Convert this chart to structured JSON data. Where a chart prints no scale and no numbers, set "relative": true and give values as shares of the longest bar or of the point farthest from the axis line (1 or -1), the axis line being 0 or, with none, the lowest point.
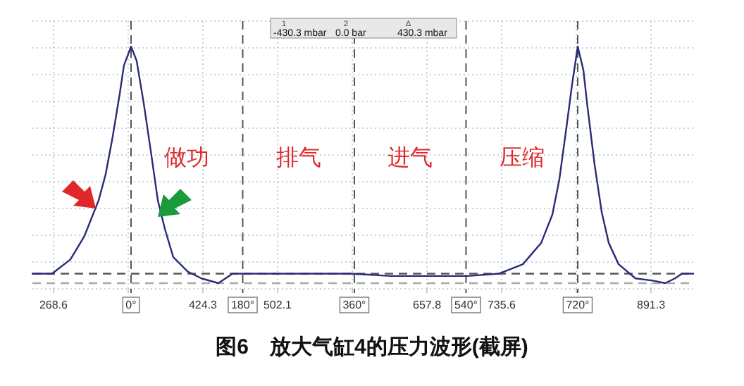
{
  "chart_data": {
    "type": "line",
    "relative": true,
    "title": "图6　放大气缸4的压力波形(截屏)",
    "series": [
      {
        "color": "#2b2b7a",
        "x": [
          246.6,
          267.1,
          286.2,
          300.9,
          315.6,
          322.9,
          330.3,
          337.6,
          342.0,
          349.4,
          355.2,
          362.6,
          369.9,
          377.3,
          384.6,
          393.4,
          408.1,
          422.8,
          440.4,
          447.8,
          455.1,
          506.5,
          579.9,
          620.0,
          653.4,
          700.0,
          732.7,
          757.7,
          776.8,
          788.5,
          795.8,
          803.2,
          809.0,
          814.9,
          820.8,
          825.2,
          832.5,
          839.9,
          847.2,
          857.5,
          875.1,
          894.2,
          906.0,
          916.2,
          923.6,
          935.3
        ],
        "values": [
          0.04,
          0.04,
          0.1,
          0.2,
          0.35,
          0.46,
          0.62,
          0.8,
          0.92,
          1.0,
          0.94,
          0.76,
          0.56,
          0.35,
          0.23,
          0.11,
          0.05,
          0.02,
          0.0,
          0.02,
          0.04,
          0.04,
          0.04,
          0.03,
          0.03,
          0.03,
          0.04,
          0.08,
          0.17,
          0.29,
          0.44,
          0.66,
          0.84,
          1.0,
          0.9,
          0.74,
          0.5,
          0.3,
          0.17,
          0.08,
          0.02,
          0.01,
          0.0,
          0.02,
          0.04,
          0.04
        ]
      }
    ],
    "xlim": [
      246.6,
      935.3
    ],
    "xticks": [
      268.6,
      {
        "value": 346.4,
        "label": null
      },
      424.3,
      502.1,
      {
        "value": 580.0,
        "label": null
      },
      657.8,
      735.6,
      {
        "value": 813.5,
        "label": null
      },
      891.3
    ],
    "x2lim": [
      -159.0,
      906.3
    ],
    "x2ticks": [
      {
        "value": 0,
        "label": "0°"
      },
      {
        "value": 180,
        "label": "180°"
      },
      {
        "value": 360,
        "label": "360°"
      },
      {
        "value": 540,
        "label": "540°"
      },
      {
        "value": 720,
        "label": "720°"
      }
    ],
    "grid": true,
    "ref_lines": [
      {
        "axis": "y",
        "value": 0.04,
        "color": "#555555",
        "line_style": "dashed"
      },
      {
        "axis": "y",
        "value": 0.0,
        "color": "#aaaaaa",
        "line_style": "dashed"
      }
    ],
    "annotations": [
      "做功",
      "排气",
      "进气",
      "压缩",
      "1",
      "-430.3 mbar",
      "2",
      "0.0 bar",
      "Δ",
      "430.3 mbar"
    ]
  }
}
